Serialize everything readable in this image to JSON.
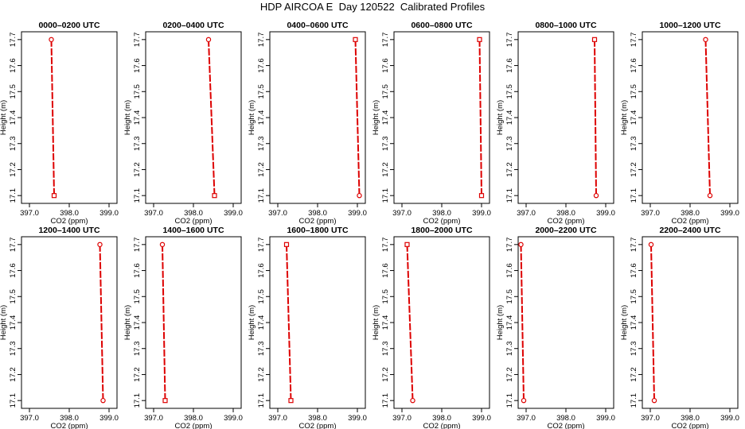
{
  "title": "HDP AIRCOA E  Day 120522  Calibrated Profiles",
  "colors": {
    "line": "#dd0000",
    "axis": "#000000"
  },
  "panel_common": {
    "xlabel": "CO2 (ppm)",
    "ylabel": "Height (m)",
    "xticks": [
      "397.0",
      "398.0",
      "399.0"
    ],
    "xtick_values": [
      397.0,
      398.0,
      399.0
    ],
    "yticks": [
      "17.1",
      "17.2",
      "17.3",
      "17.4",
      "17.5",
      "17.6",
      "17.7"
    ],
    "ytick_values": [
      17.1,
      17.2,
      17.3,
      17.4,
      17.5,
      17.6,
      17.7
    ]
  },
  "chart_data": [
    {
      "type": "line",
      "title": "0000–0200 UTC",
      "x": [
        397.55,
        397.62
      ],
      "y": [
        17.7,
        17.1
      ],
      "xlim": [
        396.8,
        399.2
      ],
      "ylim": [
        17.07,
        17.73
      ],
      "marker_top": "circle",
      "marker_bottom": "square"
    },
    {
      "type": "line",
      "title": "0200–0400 UTC",
      "x": [
        398.38,
        398.53
      ],
      "y": [
        17.7,
        17.1
      ],
      "xlim": [
        396.8,
        399.2
      ],
      "ylim": [
        17.07,
        17.73
      ],
      "marker_top": "circle",
      "marker_bottom": "square"
    },
    {
      "type": "line",
      "title": "0400–0600 UTC",
      "x": [
        398.95,
        399.05
      ],
      "y": [
        17.7,
        17.1
      ],
      "xlim": [
        396.8,
        399.2
      ],
      "ylim": [
        17.07,
        17.73
      ],
      "marker_top": "square",
      "marker_bottom": "circle"
    },
    {
      "type": "line",
      "title": "0600–0800 UTC",
      "x": [
        398.95,
        399.0
      ],
      "y": [
        17.7,
        17.1
      ],
      "xlim": [
        396.8,
        399.2
      ],
      "ylim": [
        17.07,
        17.73
      ],
      "marker_top": "square",
      "marker_bottom": "square"
    },
    {
      "type": "line",
      "title": "0800–1000 UTC",
      "x": [
        398.72,
        398.76
      ],
      "y": [
        17.7,
        17.1
      ],
      "xlim": [
        396.8,
        399.2
      ],
      "ylim": [
        17.07,
        17.73
      ],
      "marker_top": "square",
      "marker_bottom": "circle"
    },
    {
      "type": "line",
      "title": "1000–1200 UTC",
      "x": [
        398.39,
        398.5
      ],
      "y": [
        17.7,
        17.1
      ],
      "xlim": [
        396.8,
        399.2
      ],
      "ylim": [
        17.07,
        17.73
      ],
      "marker_top": "circle",
      "marker_bottom": "circle"
    },
    {
      "type": "line",
      "title": "1200–1400 UTC",
      "x": [
        398.77,
        398.85
      ],
      "y": [
        17.7,
        17.1
      ],
      "xlim": [
        396.8,
        399.2
      ],
      "ylim": [
        17.07,
        17.73
      ],
      "marker_top": "circle",
      "marker_bottom": "circle"
    },
    {
      "type": "line",
      "title": "1400–1600 UTC",
      "x": [
        397.22,
        397.29
      ],
      "y": [
        17.7,
        17.1
      ],
      "xlim": [
        396.8,
        399.2
      ],
      "ylim": [
        17.07,
        17.73
      ],
      "marker_top": "circle",
      "marker_bottom": "square"
    },
    {
      "type": "line",
      "title": "1600–1800 UTC",
      "x": [
        397.22,
        397.33
      ],
      "y": [
        17.7,
        17.1
      ],
      "xlim": [
        396.8,
        399.2
      ],
      "ylim": [
        17.07,
        17.73
      ],
      "marker_top": "square",
      "marker_bottom": "square"
    },
    {
      "type": "line",
      "title": "1800–2000 UTC",
      "x": [
        397.13,
        397.27
      ],
      "y": [
        17.7,
        17.1
      ],
      "xlim": [
        396.8,
        399.2
      ],
      "ylim": [
        17.07,
        17.73
      ],
      "marker_top": "square",
      "marker_bottom": "circle"
    },
    {
      "type": "line",
      "title": "2000–2200 UTC",
      "x": [
        396.87,
        396.94
      ],
      "y": [
        17.7,
        17.1
      ],
      "xlim": [
        396.8,
        399.2
      ],
      "ylim": [
        17.07,
        17.73
      ],
      "marker_top": "circle",
      "marker_bottom": "circle"
    },
    {
      "type": "line",
      "title": "2200–2400 UTC",
      "x": [
        397.02,
        397.1
      ],
      "y": [
        17.7,
        17.1
      ],
      "xlim": [
        396.8,
        399.2
      ],
      "ylim": [
        17.07,
        17.73
      ],
      "marker_top": "circle",
      "marker_bottom": "circle"
    }
  ]
}
